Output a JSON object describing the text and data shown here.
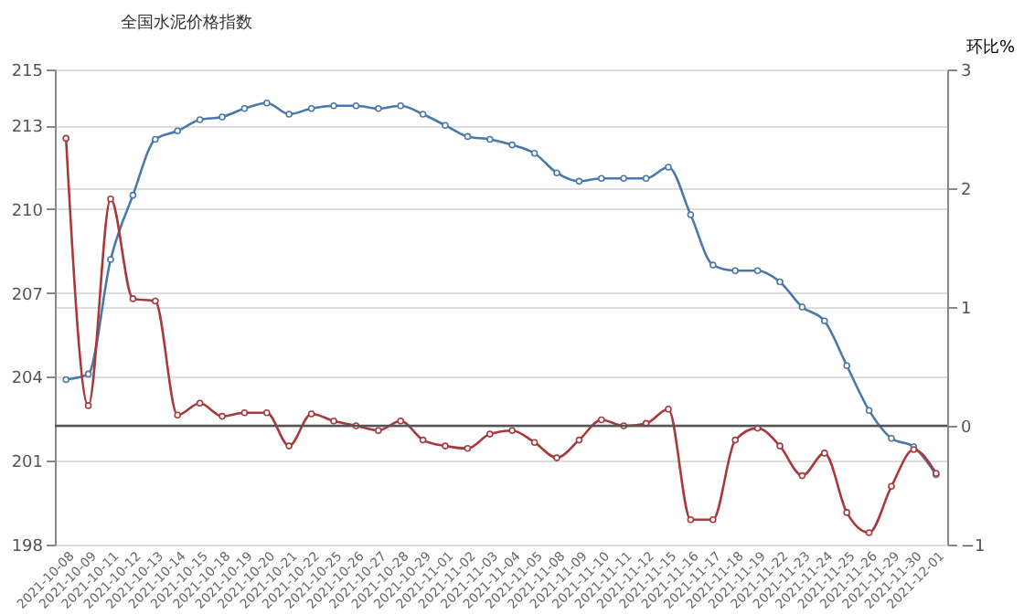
{
  "chart_data": {
    "type": "line",
    "title": "全国水泥价格指数",
    "y2label": "环比%",
    "categories": [
      "2021-10-08",
      "2021-10-09",
      "2021-10-11",
      "2021-10-12",
      "2021-10-13",
      "2021-10-14",
      "2021-10-15",
      "2021-10-18",
      "2021-10-19",
      "2021-10-20",
      "2021-10-21",
      "2021-10-22",
      "2021-10-25",
      "2021-10-26",
      "2021-10-27",
      "2021-10-28",
      "2021-10-29",
      "2021-11-01",
      "2021-11-02",
      "2021-11-03",
      "2021-11-04",
      "2021-11-05",
      "2021-11-08",
      "2021-11-09",
      "2021-11-10",
      "2021-11-11",
      "2021-11-12",
      "2021-11-15",
      "2021-11-16",
      "2021-11-17",
      "2021-11-18",
      "2021-11-19",
      "2021-11-22",
      "2021-11-23",
      "2021-11-24",
      "2021-11-25",
      "2021-11-26",
      "2021-11-29",
      "2021-11-30",
      "2021-12-01"
    ],
    "series": [
      {
        "color": "#4a78aa",
        "values": [
          203.9,
          204.1,
          208.2,
          210.5,
          212.5,
          212.8,
          213.2,
          213.3,
          213.6,
          213.8,
          213.4,
          213.6,
          213.7,
          213.7,
          213.6,
          213.7,
          213.4,
          213.0,
          212.6,
          212.5,
          212.3,
          212.0,
          211.3,
          211.0,
          211.1,
          211.1,
          211.1,
          211.5,
          209.8,
          208.0,
          207.8,
          207.8,
          207.4,
          206.5,
          206.0,
          204.4,
          202.8,
          201.8,
          201.5,
          200.5
        ]
      },
      {
        "color": "#a8393c",
        "axis": "y2",
        "values": [
          2.42,
          0.17,
          1.91,
          1.07,
          1.05,
          0.09,
          0.19,
          0.08,
          0.11,
          0.11,
          -0.17,
          0.1,
          0.04,
          0.0,
          -0.04,
          0.04,
          -0.12,
          -0.17,
          -0.19,
          -0.07,
          -0.04,
          -0.14,
          -0.27,
          -0.12,
          0.05,
          0.0,
          0.02,
          0.14,
          -0.79,
          -0.79,
          -0.12,
          -0.02,
          -0.17,
          -0.42,
          -0.23,
          -0.73,
          -0.9,
          -0.51,
          -0.2,
          -0.4
        ]
      }
    ],
    "ylim": [
      198,
      215
    ],
    "yticks": [
      198,
      201,
      204,
      207,
      210,
      213,
      215
    ],
    "y2lim": [
      -1,
      3
    ],
    "y2ticks": [
      -1,
      0,
      1,
      2,
      3
    ],
    "ref_lines": [
      {
        "axis": "y2",
        "value": 0,
        "color": "#555555"
      }
    ],
    "grid": "y",
    "marker": "circle",
    "line_style": "solid"
  }
}
